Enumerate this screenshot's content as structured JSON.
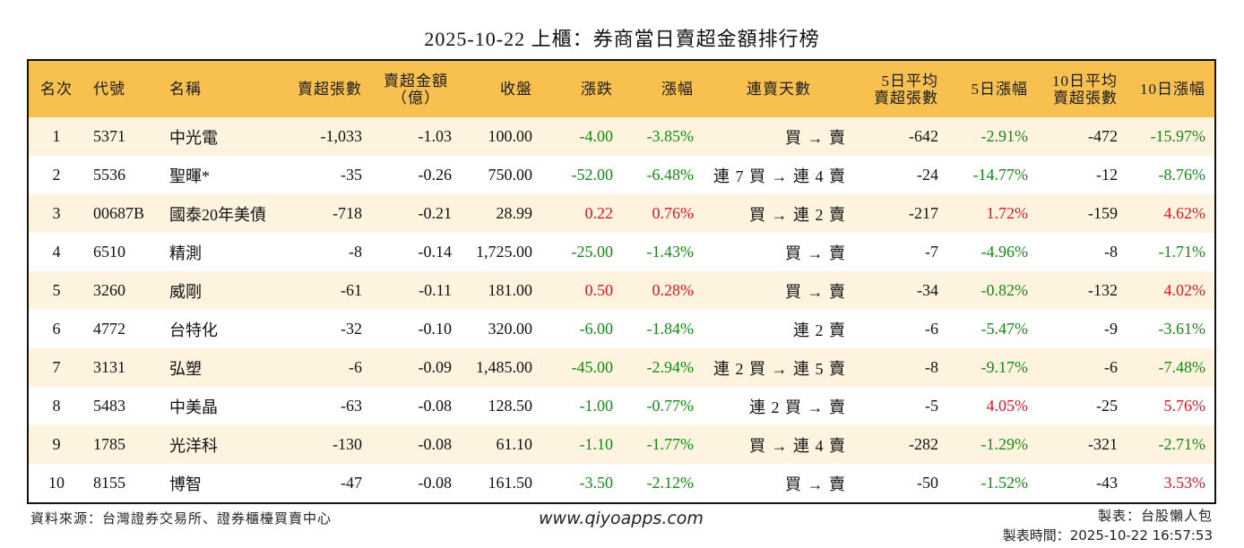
{
  "title": "2025-10-22 上櫃：券商當日賣超金額排行榜",
  "table": {
    "headers": [
      {
        "line1": "名次",
        "line2": ""
      },
      {
        "line1": "代號",
        "line2": ""
      },
      {
        "line1": "名稱",
        "line2": ""
      },
      {
        "line1": "賣超張數",
        "line2": ""
      },
      {
        "line1": "賣超金額",
        "line2": "（億）"
      },
      {
        "line1": "收盤",
        "line2": ""
      },
      {
        "line1": "漲跌",
        "line2": ""
      },
      {
        "line1": "漲幅",
        "line2": ""
      },
      {
        "line1": "連賣天數",
        "line2": ""
      },
      {
        "line1": "5日平均",
        "line2": "賣超張數"
      },
      {
        "line1": "5日漲幅",
        "line2": ""
      },
      {
        "line1": "10日平均",
        "line2": "賣超張數"
      },
      {
        "line1": "10日漲幅",
        "line2": ""
      }
    ],
    "rows": [
      {
        "rank": "1",
        "code": "5371",
        "name": "中光電",
        "net_sell_lots": "-1,033",
        "net_sell_amount": "-1.03",
        "close": "100.00",
        "change": "-4.00",
        "change_pct": "-3.85%",
        "streak": "買 → 賣",
        "avg5_lots": "-642",
        "pct5": "-2.91%",
        "avg10_lots": "-472",
        "pct10": "-15.97%"
      },
      {
        "rank": "2",
        "code": "5536",
        "name": "聖暉*",
        "net_sell_lots": "-35",
        "net_sell_amount": "-0.26",
        "close": "750.00",
        "change": "-52.00",
        "change_pct": "-6.48%",
        "streak": "連 7 買 → 連 4 賣",
        "avg5_lots": "-24",
        "pct5": "-14.77%",
        "avg10_lots": "-12",
        "pct10": "-8.76%"
      },
      {
        "rank": "3",
        "code": "00687B",
        "name": "國泰20年美債",
        "net_sell_lots": "-718",
        "net_sell_amount": "-0.21",
        "close": "28.99",
        "change": "0.22",
        "change_pct": "0.76%",
        "streak": "買 → 連 2 賣",
        "avg5_lots": "-217",
        "pct5": "1.72%",
        "avg10_lots": "-159",
        "pct10": "4.62%"
      },
      {
        "rank": "4",
        "code": "6510",
        "name": "精測",
        "net_sell_lots": "-8",
        "net_sell_amount": "-0.14",
        "close": "1,725.00",
        "change": "-25.00",
        "change_pct": "-1.43%",
        "streak": "買 → 賣",
        "avg5_lots": "-7",
        "pct5": "-4.96%",
        "avg10_lots": "-8",
        "pct10": "-1.71%"
      },
      {
        "rank": "5",
        "code": "3260",
        "name": "威剛",
        "net_sell_lots": "-61",
        "net_sell_amount": "-0.11",
        "close": "181.00",
        "change": "0.50",
        "change_pct": "0.28%",
        "streak": "買 → 賣",
        "avg5_lots": "-34",
        "pct5": "-0.82%",
        "avg10_lots": "-132",
        "pct10": "4.02%"
      },
      {
        "rank": "6",
        "code": "4772",
        "name": "台特化",
        "net_sell_lots": "-32",
        "net_sell_amount": "-0.10",
        "close": "320.00",
        "change": "-6.00",
        "change_pct": "-1.84%",
        "streak": "連 2 賣",
        "avg5_lots": "-6",
        "pct5": "-5.47%",
        "avg10_lots": "-9",
        "pct10": "-3.61%"
      },
      {
        "rank": "7",
        "code": "3131",
        "name": "弘塑",
        "net_sell_lots": "-6",
        "net_sell_amount": "-0.09",
        "close": "1,485.00",
        "change": "-45.00",
        "change_pct": "-2.94%",
        "streak": "連 2 買 → 連 5 賣",
        "avg5_lots": "-8",
        "pct5": "-9.17%",
        "avg10_lots": "-6",
        "pct10": "-7.48%"
      },
      {
        "rank": "8",
        "code": "5483",
        "name": "中美晶",
        "net_sell_lots": "-63",
        "net_sell_amount": "-0.08",
        "close": "128.50",
        "change": "-1.00",
        "change_pct": "-0.77%",
        "streak": "連 2 買 → 賣",
        "avg5_lots": "-5",
        "pct5": "4.05%",
        "avg10_lots": "-25",
        "pct10": "5.76%"
      },
      {
        "rank": "9",
        "code": "1785",
        "name": "光洋科",
        "net_sell_lots": "-130",
        "net_sell_amount": "-0.08",
        "close": "61.10",
        "change": "-1.10",
        "change_pct": "-1.77%",
        "streak": "買 → 連 4 賣",
        "avg5_lots": "-282",
        "pct5": "-1.29%",
        "avg10_lots": "-321",
        "pct10": "-2.71%"
      },
      {
        "rank": "10",
        "code": "8155",
        "name": "博智",
        "net_sell_lots": "-47",
        "net_sell_amount": "-0.08",
        "close": "161.50",
        "change": "-3.50",
        "change_pct": "-2.12%",
        "streak": "買 → 賣",
        "avg5_lots": "-50",
        "pct5": "-1.52%",
        "avg10_lots": "-43",
        "pct10": "3.53%"
      }
    ]
  },
  "colors": {
    "header_bg": "#f8c04f",
    "stripe_bg": "#fdf3df",
    "up": "#e0141e",
    "down": "#138a13",
    "border": "#111111"
  },
  "footer": {
    "source": "資料來源：台灣證券交易所、證券櫃檯買賣中心",
    "website": "www.qiyoapps.com",
    "author": "製表：台股懶人包",
    "timestamp": "製表時間：2025-10-22 16:57:53"
  }
}
